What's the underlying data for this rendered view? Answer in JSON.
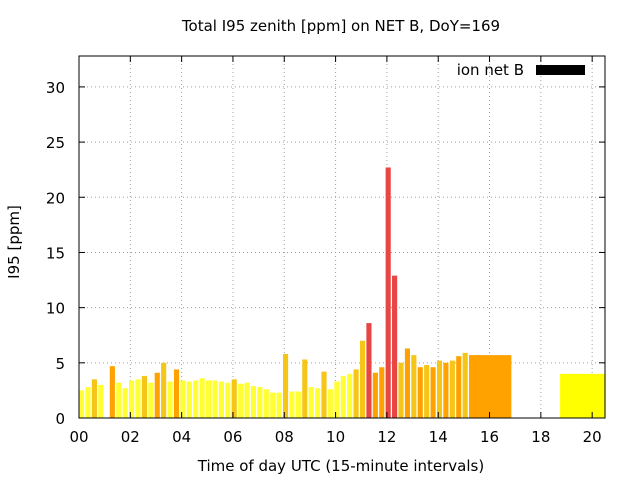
{
  "chart_data": {
    "type": "bar",
    "title": "Total I95 zenith [ppm] on NET B, DoY=169",
    "xlabel": "Time of day UTC (15-minute intervals)",
    "ylabel": "I95 [ppm]",
    "xlim": [
      0,
      20.5
    ],
    "ylim": [
      0,
      32.8
    ],
    "x_ticks": [
      "00",
      "02",
      "04",
      "06",
      "08",
      "10",
      "12",
      "14",
      "16",
      "18",
      "20"
    ],
    "x_tick_values": [
      0,
      2,
      4,
      6,
      8,
      10,
      12,
      14,
      16,
      18,
      20
    ],
    "y_ticks": [
      "0",
      "5",
      "10",
      "15",
      "20",
      "25",
      "30"
    ],
    "y_tick_values": [
      0,
      5,
      10,
      15,
      20,
      25,
      30
    ],
    "grid": true,
    "legend": {
      "label": "ion net B",
      "color": "#000000",
      "placement": "top-right"
    },
    "colors": {
      "low": "#ffff33",
      "mid": "#f5c518",
      "high": "#ffa200",
      "extreme": "#e84545"
    },
    "bars": [
      {
        "x0": 0.0,
        "x1": 0.2,
        "value": 2.5,
        "color": "#ffff33"
      },
      {
        "x0": 0.25,
        "x1": 0.45,
        "value": 2.8,
        "color": "#ffff33"
      },
      {
        "x0": 0.5,
        "x1": 0.7,
        "value": 3.5,
        "color": "#f5c518"
      },
      {
        "x0": 0.75,
        "x1": 0.95,
        "value": 3.0,
        "color": "#ffff33"
      },
      {
        "x0": 1.2,
        "x1": 1.4,
        "value": 4.7,
        "color": "#ffa200"
      },
      {
        "x0": 1.45,
        "x1": 1.65,
        "value": 3.2,
        "color": "#ffff33"
      },
      {
        "x0": 1.7,
        "x1": 1.9,
        "value": 2.7,
        "color": "#ffff33"
      },
      {
        "x0": 1.95,
        "x1": 2.15,
        "value": 3.4,
        "color": "#ffff33"
      },
      {
        "x0": 2.2,
        "x1": 2.4,
        "value": 3.5,
        "color": "#ffff33"
      },
      {
        "x0": 2.45,
        "x1": 2.65,
        "value": 3.8,
        "color": "#f5c518"
      },
      {
        "x0": 2.7,
        "x1": 2.9,
        "value": 3.2,
        "color": "#ffff33"
      },
      {
        "x0": 2.95,
        "x1": 3.15,
        "value": 4.1,
        "color": "#ffa200"
      },
      {
        "x0": 3.2,
        "x1": 3.4,
        "value": 5.0,
        "color": "#f5c518"
      },
      {
        "x0": 3.45,
        "x1": 3.65,
        "value": 3.3,
        "color": "#ffff33"
      },
      {
        "x0": 3.7,
        "x1": 3.9,
        "value": 4.4,
        "color": "#ffa200"
      },
      {
        "x0": 3.95,
        "x1": 4.15,
        "value": 3.4,
        "color": "#ffff33"
      },
      {
        "x0": 4.2,
        "x1": 4.4,
        "value": 3.3,
        "color": "#ffff33"
      },
      {
        "x0": 4.45,
        "x1": 4.65,
        "value": 3.4,
        "color": "#ffff33"
      },
      {
        "x0": 4.7,
        "x1": 4.9,
        "value": 3.6,
        "color": "#ffff33"
      },
      {
        "x0": 4.95,
        "x1": 5.15,
        "value": 3.4,
        "color": "#ffff33"
      },
      {
        "x0": 5.2,
        "x1": 5.4,
        "value": 3.4,
        "color": "#ffff33"
      },
      {
        "x0": 5.45,
        "x1": 5.65,
        "value": 3.3,
        "color": "#ffff33"
      },
      {
        "x0": 5.7,
        "x1": 5.9,
        "value": 3.2,
        "color": "#ffff33"
      },
      {
        "x0": 5.95,
        "x1": 6.15,
        "value": 3.5,
        "color": "#f5c518"
      },
      {
        "x0": 6.2,
        "x1": 6.4,
        "value": 3.1,
        "color": "#ffff33"
      },
      {
        "x0": 6.45,
        "x1": 6.65,
        "value": 3.2,
        "color": "#ffff33"
      },
      {
        "x0": 6.7,
        "x1": 6.9,
        "value": 2.9,
        "color": "#ffff33"
      },
      {
        "x0": 6.95,
        "x1": 7.15,
        "value": 2.8,
        "color": "#ffff33"
      },
      {
        "x0": 7.2,
        "x1": 7.4,
        "value": 2.6,
        "color": "#ffff33"
      },
      {
        "x0": 7.45,
        "x1": 7.65,
        "value": 2.3,
        "color": "#ffff33"
      },
      {
        "x0": 7.7,
        "x1": 7.9,
        "value": 2.3,
        "color": "#ffff33"
      },
      {
        "x0": 7.95,
        "x1": 8.15,
        "value": 5.8,
        "color": "#f5c518"
      },
      {
        "x0": 8.2,
        "x1": 8.4,
        "value": 2.4,
        "color": "#ffff33"
      },
      {
        "x0": 8.45,
        "x1": 8.65,
        "value": 2.4,
        "color": "#ffff33"
      },
      {
        "x0": 8.7,
        "x1": 8.9,
        "value": 5.3,
        "color": "#f5c518"
      },
      {
        "x0": 8.95,
        "x1": 9.15,
        "value": 2.8,
        "color": "#ffff33"
      },
      {
        "x0": 9.2,
        "x1": 9.4,
        "value": 2.7,
        "color": "#ffff33"
      },
      {
        "x0": 9.45,
        "x1": 9.65,
        "value": 4.2,
        "color": "#f5c518"
      },
      {
        "x0": 9.7,
        "x1": 9.9,
        "value": 2.6,
        "color": "#ffff33"
      },
      {
        "x0": 9.95,
        "x1": 10.15,
        "value": 3.3,
        "color": "#ffff33"
      },
      {
        "x0": 10.2,
        "x1": 10.4,
        "value": 3.8,
        "color": "#ffff33"
      },
      {
        "x0": 10.45,
        "x1": 10.65,
        "value": 4.0,
        "color": "#ffff33"
      },
      {
        "x0": 10.7,
        "x1": 10.9,
        "value": 4.4,
        "color": "#f5c518"
      },
      {
        "x0": 10.95,
        "x1": 11.15,
        "value": 7.0,
        "color": "#f5c518"
      },
      {
        "x0": 11.2,
        "x1": 11.4,
        "value": 8.6,
        "color": "#e84545"
      },
      {
        "x0": 11.45,
        "x1": 11.65,
        "value": 4.1,
        "color": "#ffa200"
      },
      {
        "x0": 11.7,
        "x1": 11.9,
        "value": 4.6,
        "color": "#ffa200"
      },
      {
        "x0": 11.95,
        "x1": 12.15,
        "value": 22.7,
        "color": "#e84545"
      },
      {
        "x0": 12.2,
        "x1": 12.4,
        "value": 12.9,
        "color": "#e84545"
      },
      {
        "x0": 12.45,
        "x1": 12.65,
        "value": 5.0,
        "color": "#f5c518"
      },
      {
        "x0": 12.7,
        "x1": 12.9,
        "value": 6.3,
        "color": "#ffa200"
      },
      {
        "x0": 12.95,
        "x1": 13.15,
        "value": 5.7,
        "color": "#f5c518"
      },
      {
        "x0": 13.2,
        "x1": 13.4,
        "value": 4.6,
        "color": "#ffa200"
      },
      {
        "x0": 13.45,
        "x1": 13.65,
        "value": 4.8,
        "color": "#f5c518"
      },
      {
        "x0": 13.7,
        "x1": 13.9,
        "value": 4.6,
        "color": "#ffa200"
      },
      {
        "x0": 13.95,
        "x1": 14.15,
        "value": 5.2,
        "color": "#f5c518"
      },
      {
        "x0": 14.2,
        "x1": 14.4,
        "value": 5.0,
        "color": "#ffa200"
      },
      {
        "x0": 14.45,
        "x1": 14.65,
        "value": 5.2,
        "color": "#f5c518"
      },
      {
        "x0": 14.7,
        "x1": 14.9,
        "value": 5.6,
        "color": "#ffa200"
      },
      {
        "x0": 14.95,
        "x1": 15.15,
        "value": 5.9,
        "color": "#f5c518"
      },
      {
        "x0": 15.2,
        "x1": 16.85,
        "value": 5.7,
        "color": "#ffa200"
      },
      {
        "x0": 18.75,
        "x1": 20.5,
        "value": 4.0,
        "color": "#ffff00"
      }
    ]
  }
}
